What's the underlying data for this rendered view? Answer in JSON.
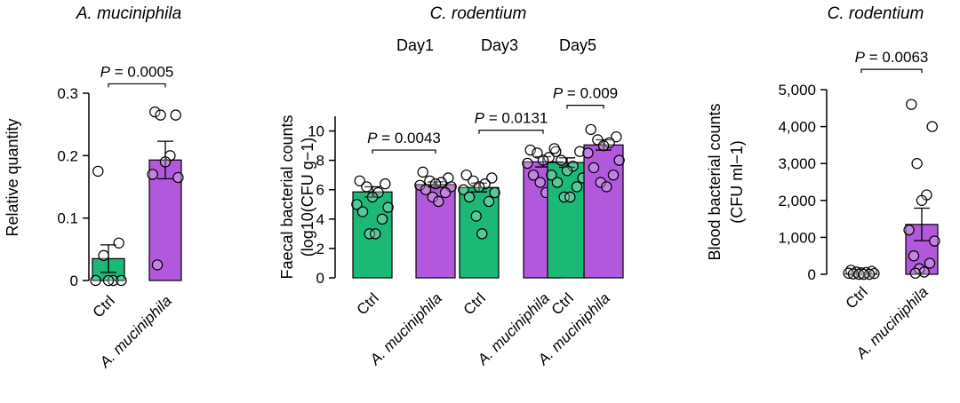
{
  "colors": {
    "ctrl": "#1bb876",
    "akk": "#b258dc"
  },
  "chart_data": [
    {
      "type": "bar",
      "title": "A. muciniphila",
      "ylabel_lines": [
        "Relative quantity"
      ],
      "ylim": [
        0,
        0.3
      ],
      "yticks": [
        0,
        0.1,
        0.2,
        0.3
      ],
      "ytick_labels": [
        "0",
        "0.1",
        "0.2",
        "0.3"
      ],
      "categories": [
        "Ctrl",
        "A. muciniphila"
      ],
      "bars": [
        {
          "category": "Ctrl",
          "group": "ctrl",
          "value": 0.035,
          "sem": 0.022,
          "points": [
            0.175,
            0.06,
            0.04,
            0.0,
            0.0,
            0.0,
            0.0
          ]
        },
        {
          "category": "A. muciniphila",
          "group": "akk",
          "value": 0.193,
          "sem": 0.03,
          "points": [
            0.27,
            0.265,
            0.265,
            0.2,
            0.19,
            0.17,
            0.165,
            0.025
          ]
        }
      ],
      "comparisons": [
        {
          "from": 0,
          "to": 1,
          "label": "P = 0.0005",
          "y": 0.315
        }
      ]
    },
    {
      "type": "bar",
      "title": "C. rodentium",
      "ylabel_lines": [
        "Faecal bacterial counts",
        "(log10(CFU g−1)"
      ],
      "ylim": [
        0,
        11
      ],
      "yticks": [
        0,
        2,
        4,
        6,
        8,
        10
      ],
      "ytick_labels": [
        "0",
        "2",
        "4",
        "6",
        "8",
        "10"
      ],
      "groups": [
        "Day1",
        "Day3",
        "Day5"
      ],
      "categories": [
        "Ctrl",
        "A. muciniphila",
        "Ctrl",
        "A. muciniphila",
        "Ctrl",
        "A. muciniphila"
      ],
      "bars": [
        {
          "category": "Ctrl",
          "day": "Day1",
          "group": "ctrl",
          "value": 5.85,
          "sem": 0.35,
          "points": [
            6.6,
            6.4,
            6.2,
            5.8,
            5.5,
            5.0,
            4.8,
            4.5,
            4.0,
            3.0,
            3.0
          ]
        },
        {
          "category": "A. muciniphila",
          "day": "Day1",
          "group": "akk",
          "value": 6.35,
          "sem": 0.18,
          "points": [
            7.2,
            6.8,
            6.6,
            6.5,
            6.4,
            6.3,
            6.2,
            6.0,
            5.8,
            5.5,
            5.2
          ]
        },
        {
          "category": "Ctrl",
          "day": "Day3",
          "group": "ctrl",
          "value": 6.15,
          "sem": 0.3,
          "points": [
            7.0,
            6.8,
            6.6,
            6.4,
            6.2,
            6.0,
            5.8,
            5.5,
            5.2,
            4.2,
            3.0
          ]
        },
        {
          "category": "A. muciniphila",
          "day": "Day3",
          "group": "akk",
          "value": 7.9,
          "sem": 0.35,
          "points": [
            8.7,
            8.6,
            8.5,
            8.2,
            8.0,
            7.8,
            7.5,
            7.0,
            6.8,
            6.5,
            5.8
          ]
        },
        {
          "category": "Ctrl",
          "day": "Day5",
          "group": "ctrl",
          "value": 7.85,
          "sem": 0.32,
          "points": [
            8.8,
            8.6,
            8.0,
            7.6,
            7.3,
            7.0,
            6.8,
            6.5,
            6.2,
            5.5,
            5.5
          ]
        },
        {
          "category": "A. muciniphila",
          "day": "Day5",
          "group": "akk",
          "value": 9.05,
          "sem": 0.35,
          "points": [
            10.1,
            9.6,
            9.4,
            9.2,
            9.0,
            8.5,
            8.0,
            7.5,
            7.0,
            6.5,
            6.2
          ]
        }
      ],
      "comparisons": [
        {
          "from": 0,
          "to": 1,
          "label": "P = 0.0043",
          "y": 8.7
        },
        {
          "from": 2,
          "to": 3,
          "label": "P = 0.0131",
          "y": 10.05
        },
        {
          "from": 4,
          "to": 5,
          "label": "P = 0.009",
          "y": 11.75
        }
      ]
    },
    {
      "type": "bar",
      "title": "C. rodentium",
      "ylabel_lines": [
        "Blood bacterial counts",
        "(CFU ml−1)"
      ],
      "ylim": [
        0,
        5000
      ],
      "yticks": [
        0,
        1000,
        2000,
        3000,
        4000,
        5000
      ],
      "ytick_labels": [
        "0",
        "1,000",
        "2,000",
        "3,000",
        "4,000",
        "5,000"
      ],
      "categories": [
        "Ctrl",
        "A. muciniphila"
      ],
      "bars": [
        {
          "category": "Ctrl",
          "group": "ctrl",
          "value": 20,
          "sem": 15,
          "points": [
            110,
            80,
            60,
            50,
            40,
            30,
            20,
            10,
            0,
            0,
            0
          ]
        },
        {
          "category": "A. muciniphila",
          "group": "akk",
          "value": 1350,
          "sem": 440,
          "points": [
            4600,
            4000,
            3000,
            2150,
            2000,
            1200,
            900,
            500,
            300,
            150,
            60,
            30
          ]
        }
      ],
      "comparisons": [
        {
          "from": 0,
          "to": 1,
          "label": "P = 0.0063",
          "y": 5550
        }
      ]
    }
  ]
}
